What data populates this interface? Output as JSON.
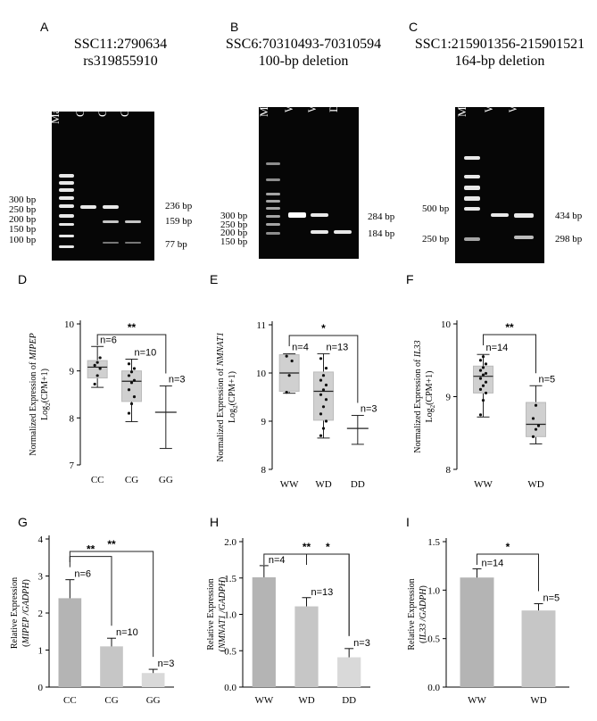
{
  "gels": [
    {
      "label": "A",
      "title": [
        "SSC11:2790634",
        "rs319855910"
      ],
      "lanes": [
        "Marker",
        "CC",
        "CG",
        "GG"
      ],
      "marker_sizes": [
        "300 bp",
        "250 bp",
        "200 bp",
        "150 bp",
        "100 bp"
      ],
      "band_sizes": [
        "236 bp",
        "159 bp",
        "77 bp"
      ]
    },
    {
      "label": "B",
      "title": [
        "SSC6:70310493-70310594",
        "100-bp deletion"
      ],
      "lanes": [
        "Marker",
        "WW",
        "WD",
        "DD"
      ],
      "marker_sizes": [
        "300 bp",
        "250 bp",
        "200 bp",
        "150 bp"
      ],
      "band_sizes": [
        "284 bp",
        "184 bp"
      ]
    },
    {
      "label": "C",
      "title": [
        "SSC1:215901356-215901521",
        "164-bp deletion"
      ],
      "lanes": [
        "Marker",
        "WW",
        "WD"
      ],
      "marker_sizes": [
        "500 bp",
        "250 bp"
      ],
      "band_sizes": [
        "434 bp",
        "298 bp"
      ]
    }
  ],
  "chart_data": [
    {
      "label": "D",
      "type": "box",
      "ylabel_pre": "Normalized Expression of ",
      "ylabel_gene": "MIPEP",
      "ylabel2": "Log",
      "ylabel2_sub": "2",
      "ylabel2_post": "(CPM+1)",
      "categories": [
        "CC",
        "CG",
        "GG"
      ],
      "ylim": [
        7,
        10
      ],
      "yticks": [
        "7",
        "8",
        "9",
        "10"
      ],
      "series": [
        {
          "category": "CC",
          "min": 8.65,
          "q1": 8.85,
          "median": 9.08,
          "q3": 9.22,
          "max": 9.52,
          "n": "n=6",
          "points": [
            8.72,
            8.9,
            9.05,
            9.12,
            9.18,
            9.28
          ]
        },
        {
          "category": "CG",
          "min": 7.92,
          "q1": 8.35,
          "median": 8.78,
          "q3": 9.0,
          "max": 9.25,
          "n": "n=10",
          "points": [
            8.1,
            8.3,
            8.45,
            8.6,
            8.75,
            8.8,
            8.9,
            8.98,
            9.05,
            9.15
          ]
        },
        {
          "category": "GG",
          "min": 7.35,
          "median": 8.12,
          "max": 8.68,
          "n": "n=3",
          "points": []
        }
      ],
      "significance": [
        {
          "from": "CC",
          "to": "GG",
          "label": "**"
        }
      ]
    },
    {
      "label": "E",
      "type": "box",
      "ylabel_pre": "Normalized Expression of ",
      "ylabel_gene": "NMNAT1",
      "ylabel2": "Log",
      "ylabel2_sub": "2",
      "ylabel2_post": "(CPM+1)",
      "categories": [
        "WW",
        "WD",
        "DD"
      ],
      "ylim": [
        8,
        11
      ],
      "yticks": [
        "8",
        "9",
        "10",
        "11"
      ],
      "series": [
        {
          "category": "WW",
          "min": 9.58,
          "q1": 9.62,
          "median": 10.0,
          "q3": 10.38,
          "max": 10.4,
          "n": "n=4",
          "points": [
            9.6,
            9.95,
            10.25,
            10.35
          ]
        },
        {
          "category": "WD",
          "min": 8.65,
          "q1": 9.02,
          "median": 9.62,
          "q3": 10.02,
          "max": 10.4,
          "n": "n=13",
          "points": [
            8.7,
            8.85,
            9.0,
            9.15,
            9.3,
            9.45,
            9.55,
            9.65,
            9.75,
            9.85,
            9.95,
            10.1,
            10.3
          ]
        },
        {
          "category": "DD",
          "min": 8.52,
          "median": 8.85,
          "max": 9.12,
          "n": "n=3",
          "points": []
        }
      ],
      "significance": [
        {
          "from": "WW",
          "to": "DD",
          "label": "*"
        }
      ]
    },
    {
      "label": "F",
      "type": "box",
      "ylabel_pre": "Normalized Expression of ",
      "ylabel_gene": "IL33",
      "ylabel2": "Log",
      "ylabel2_sub": "2",
      "ylabel2_post": "(CPM+1)",
      "categories": [
        "WW",
        "WD"
      ],
      "ylim": [
        8,
        10
      ],
      "yticks": [
        "8",
        "9",
        "10"
      ],
      "series": [
        {
          "category": "WW",
          "min": 8.72,
          "q1": 9.05,
          "median": 9.28,
          "q3": 9.42,
          "max": 9.58,
          "n": "n=14",
          "points": [
            8.75,
            8.95,
            9.05,
            9.1,
            9.15,
            9.2,
            9.25,
            9.3,
            9.32,
            9.36,
            9.4,
            9.45,
            9.5,
            9.55
          ]
        },
        {
          "category": "WD",
          "min": 8.35,
          "q1": 8.45,
          "median": 8.62,
          "q3": 8.92,
          "max": 9.15,
          "n": "n=5",
          "points": [
            8.45,
            8.55,
            8.6,
            8.7,
            8.88
          ]
        }
      ],
      "significance": [
        {
          "from": "WW",
          "to": "WD",
          "label": "**"
        }
      ]
    },
    {
      "label": "G",
      "type": "bar",
      "ylabel": "Relative Expression",
      "ylabel_gene": "MIPEP",
      "ylabel_ref": "GADPH",
      "categories": [
        "CC",
        "CG",
        "GG"
      ],
      "values": [
        2.4,
        1.1,
        0.38
      ],
      "errors": [
        0.5,
        0.22,
        0.1
      ],
      "n": [
        "n=6",
        "n=10",
        "n=3"
      ],
      "colors": [
        "#b4b4b4",
        "#c6c6c6",
        "#d9d9d9"
      ],
      "ylim": [
        0,
        4
      ],
      "yticks": [
        "0",
        "1",
        "2",
        "3",
        "4"
      ],
      "significance": [
        {
          "from": "CC",
          "to": "CG",
          "label": "**"
        },
        {
          "from": "CC",
          "to": "GG",
          "label": "**"
        }
      ]
    },
    {
      "label": "H",
      "type": "bar",
      "ylabel": "Relative Expression",
      "ylabel_gene": "NMNAT1",
      "ylabel_ref": "GADPH",
      "categories": [
        "WW",
        "WD",
        "DD"
      ],
      "values": [
        1.51,
        1.11,
        0.41
      ],
      "errors": [
        0.16,
        0.12,
        0.12
      ],
      "n": [
        "n=4",
        "n=13",
        "n=3"
      ],
      "colors": [
        "#b4b4b4",
        "#c6c6c6",
        "#d9d9d9"
      ],
      "ylim": [
        0,
        2.0
      ],
      "yticks": [
        "0.0",
        "0.5",
        "1.0",
        "1.5",
        "2.0"
      ],
      "significance": [
        {
          "from": "WW",
          "to": "DD",
          "label": "**"
        },
        {
          "from": "WD",
          "to": "DD",
          "label": "*"
        }
      ]
    },
    {
      "label": "I",
      "type": "bar",
      "ylabel": "Relative Expression",
      "ylabel_gene": "IL33",
      "ylabel_ref": "GADPH",
      "categories": [
        "WW",
        "WD"
      ],
      "values": [
        1.13,
        0.79
      ],
      "errors": [
        0.09,
        0.07
      ],
      "n": [
        "n=14",
        "n=5"
      ],
      "colors": [
        "#b4b4b4",
        "#c6c6c6"
      ],
      "ylim": [
        0,
        1.5
      ],
      "yticks": [
        "0.0",
        "0.5",
        "1.0",
        "1.5"
      ],
      "significance": [
        {
          "from": "WW",
          "to": "WD",
          "label": "*"
        }
      ]
    }
  ]
}
